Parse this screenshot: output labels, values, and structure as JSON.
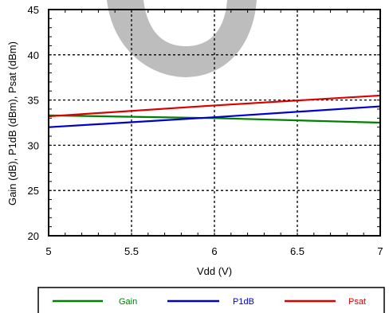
{
  "chart_data": {
    "type": "line",
    "xlabel": "Vdd (V)",
    "ylabel": "Gain (dB), P1dB (dBm), Psat (dBm)",
    "xlim": [
      5,
      7
    ],
    "ylim": [
      20,
      45
    ],
    "x_ticks": [
      5,
      5.5,
      6,
      6.5,
      7
    ],
    "x_tick_labels": [
      "5",
      "5.5",
      "6",
      "6.5",
      "7"
    ],
    "y_ticks": [
      20,
      25,
      30,
      35,
      40,
      45
    ],
    "y_tick_labels": [
      "20",
      "25",
      "30",
      "35",
      "40",
      "45"
    ],
    "grid": true,
    "legend_position": "bottom",
    "series": [
      {
        "name": "Gain",
        "color": "#008000",
        "x": [
          5,
          6,
          7
        ],
        "y": [
          33.3,
          33.0,
          32.5
        ]
      },
      {
        "name": "P1dB",
        "color": "#0000cc",
        "x": [
          5,
          6,
          7
        ],
        "y": [
          32.0,
          33.1,
          34.3
        ]
      },
      {
        "name": "Psat",
        "color": "#dd0000",
        "x": [
          5,
          6,
          7
        ],
        "y": [
          33.2,
          34.4,
          35.5
        ]
      }
    ]
  }
}
